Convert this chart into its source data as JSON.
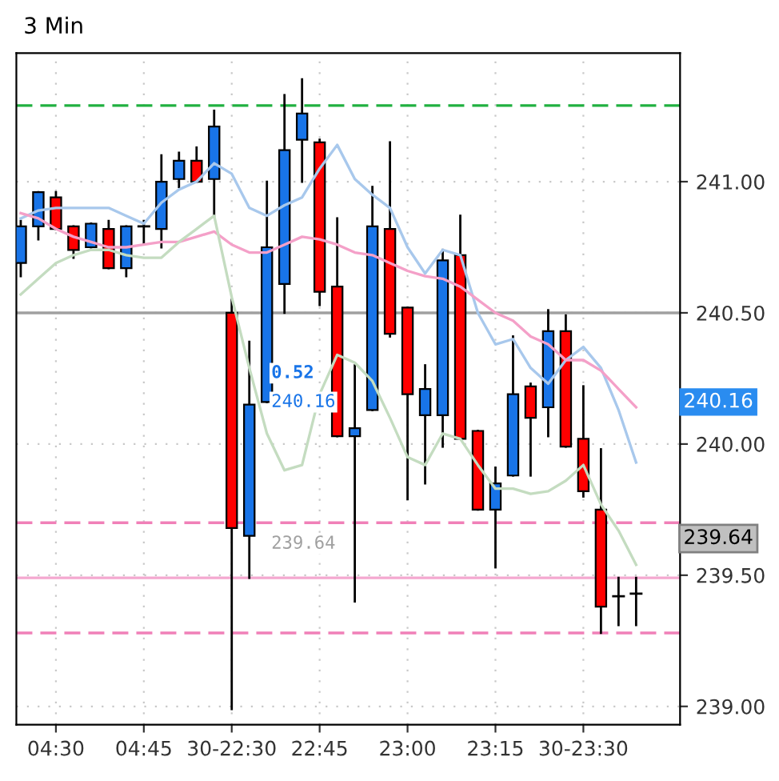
{
  "chart_data": {
    "type": "candlestick",
    "title": "3 Min",
    "categories": [
      null,
      null,
      "04:30",
      null,
      null,
      null,
      null,
      "04:45",
      null,
      null,
      null,
      null,
      "30-22:30",
      null,
      null,
      null,
      null,
      "22:45",
      null,
      null,
      null,
      null,
      "23:00",
      null,
      null,
      null,
      null,
      "23:15",
      null,
      null,
      null,
      null,
      "30-23:30",
      null,
      null,
      null
    ],
    "ohlc": [
      [
        240.69,
        240.85,
        240.64,
        240.83
      ],
      [
        240.83,
        240.96,
        240.78,
        240.96
      ],
      [
        240.94,
        240.96,
        240.82,
        240.82
      ],
      [
        240.83,
        240.83,
        240.71,
        240.74
      ],
      [
        240.75,
        240.84,
        240.75,
        240.84
      ],
      [
        240.82,
        240.85,
        240.67,
        240.67
      ],
      [
        240.67,
        240.83,
        240.64,
        240.83
      ],
      [
        240.83,
        240.85,
        240.76,
        240.83
      ],
      [
        240.82,
        241.1,
        240.75,
        241.0
      ],
      [
        241.01,
        241.11,
        240.98,
        241.08
      ],
      [
        241.08,
        241.13,
        241.0,
        241.0
      ],
      [
        241.01,
        241.27,
        240.87,
        241.21
      ],
      [
        240.5,
        240.55,
        238.99,
        239.68
      ],
      [
        239.65,
        240.39,
        239.49,
        240.15
      ],
      [
        240.16,
        241.0,
        240.16,
        240.75
      ],
      [
        240.61,
        241.33,
        240.5,
        241.12
      ],
      [
        241.16,
        241.39,
        241.0,
        241.26
      ],
      [
        241.15,
        241.16,
        240.53,
        240.58
      ],
      [
        240.6,
        240.86,
        240.03,
        240.03
      ],
      [
        240.03,
        240.3,
        239.4,
        240.06
      ],
      [
        240.13,
        240.98,
        240.13,
        240.83
      ],
      [
        240.82,
        241.15,
        240.41,
        240.42
      ],
      [
        240.52,
        240.52,
        239.79,
        240.19
      ],
      [
        240.11,
        240.3,
        239.85,
        240.21
      ],
      [
        240.11,
        240.74,
        239.99,
        240.7
      ],
      [
        240.72,
        240.87,
        240.02,
        240.02
      ],
      [
        240.05,
        240.05,
        239.75,
        239.75
      ],
      [
        239.75,
        239.91,
        239.53,
        239.85
      ],
      [
        239.88,
        240.41,
        239.88,
        240.19
      ],
      [
        240.22,
        240.23,
        239.88,
        240.1
      ],
      [
        240.14,
        240.51,
        240.03,
        240.43
      ],
      [
        240.43,
        240.49,
        239.99,
        239.99
      ],
      [
        240.02,
        240.22,
        239.8,
        239.82
      ],
      [
        239.75,
        239.98,
        239.28,
        239.38
      ],
      [
        239.42,
        239.49,
        239.31,
        239.42
      ],
      [
        239.43,
        239.49,
        239.31,
        239.43
      ]
    ],
    "colors": [
      "#1874e8",
      "#1874e8",
      "#ff0000",
      "#ff0000",
      "#1874e8",
      "#ff0000",
      "#1874e8",
      "#000000",
      "#1874e8",
      "#1874e8",
      "#ff0000",
      "#1874e8",
      "#ff0000",
      "#1874e8",
      "#1874e8",
      "#1874e8",
      "#1874e8",
      "#ff0000",
      "#ff0000",
      "#1874e8",
      "#1874e8",
      "#ff0000",
      "#ff0000",
      "#1874e8",
      "#1874e8",
      "#ff0000",
      "#ff0000",
      "#1874e8",
      "#1874e8",
      "#ff0000",
      "#1874e8",
      "#ff0000",
      "#ff0000",
      "#ff0000",
      "#000000",
      "#000000"
    ],
    "series": [
      {
        "type": "line",
        "color": "#a8c8ec",
        "values": [
          240.86,
          240.89,
          240.9,
          240.9,
          240.9,
          240.9,
          240.87,
          240.84,
          240.92,
          240.97,
          241.0,
          241.07,
          241.03,
          240.9,
          240.87,
          240.91,
          240.94,
          241.05,
          241.14,
          241.01,
          240.95,
          240.9,
          240.75,
          240.65,
          240.74,
          240.72,
          240.5,
          240.38,
          240.4,
          240.29,
          240.23,
          240.32,
          240.37,
          240.29,
          240.13,
          239.93
        ]
      },
      {
        "type": "line",
        "color": "#f4a0c8",
        "values": [
          240.88,
          240.86,
          240.82,
          240.79,
          240.77,
          240.75,
          240.75,
          240.76,
          240.77,
          240.77,
          240.79,
          240.81,
          240.76,
          240.73,
          240.73,
          240.76,
          240.79,
          240.78,
          240.76,
          240.73,
          240.72,
          240.69,
          240.66,
          240.64,
          240.63,
          240.6,
          240.55,
          240.5,
          240.47,
          240.41,
          240.38,
          240.32,
          240.32,
          240.28,
          240.21,
          240.14
        ]
      },
      {
        "type": "line",
        "color": "#c4dcc0",
        "values": [
          240.57,
          240.63,
          240.69,
          240.72,
          240.74,
          240.74,
          240.72,
          240.71,
          240.71,
          240.77,
          240.82,
          240.87,
          240.56,
          240.29,
          240.04,
          239.9,
          239.92,
          240.19,
          240.34,
          240.31,
          240.24,
          240.1,
          239.95,
          239.92,
          240.04,
          240.02,
          239.92,
          239.83,
          239.83,
          239.81,
          239.82,
          239.86,
          239.92,
          239.77,
          239.67,
          239.54
        ]
      }
    ],
    "ylim": [
      238.93,
      241.49
    ],
    "yticks": [
      {
        "value": 239.0,
        "label": "239.00"
      },
      {
        "value": 239.5,
        "label": "239.50"
      },
      {
        "value": 240.0,
        "label": "240.00"
      },
      {
        "value": 240.5,
        "label": "240.50"
      },
      {
        "value": 241.0,
        "label": "241.00"
      }
    ],
    "grid": true,
    "ref_lines": [
      {
        "axis": "y",
        "value": 241.29,
        "color": "#20b040",
        "line_style": "dashed"
      },
      {
        "axis": "y",
        "value": 240.5,
        "color": "#a0a0a0",
        "line_style": "solid"
      },
      {
        "axis": "y",
        "value": 239.7,
        "color": "#f080b8",
        "line_style": "dashed"
      },
      {
        "axis": "y",
        "value": 239.49,
        "color": "#f4a8d0",
        "line_style": "solid"
      },
      {
        "axis": "y",
        "value": 239.28,
        "color": "#f080b8",
        "line_style": "dashed"
      }
    ],
    "annotations": [
      "0.52",
      "240.16",
      "239.64",
      "240.16",
      "239.64"
    ]
  }
}
